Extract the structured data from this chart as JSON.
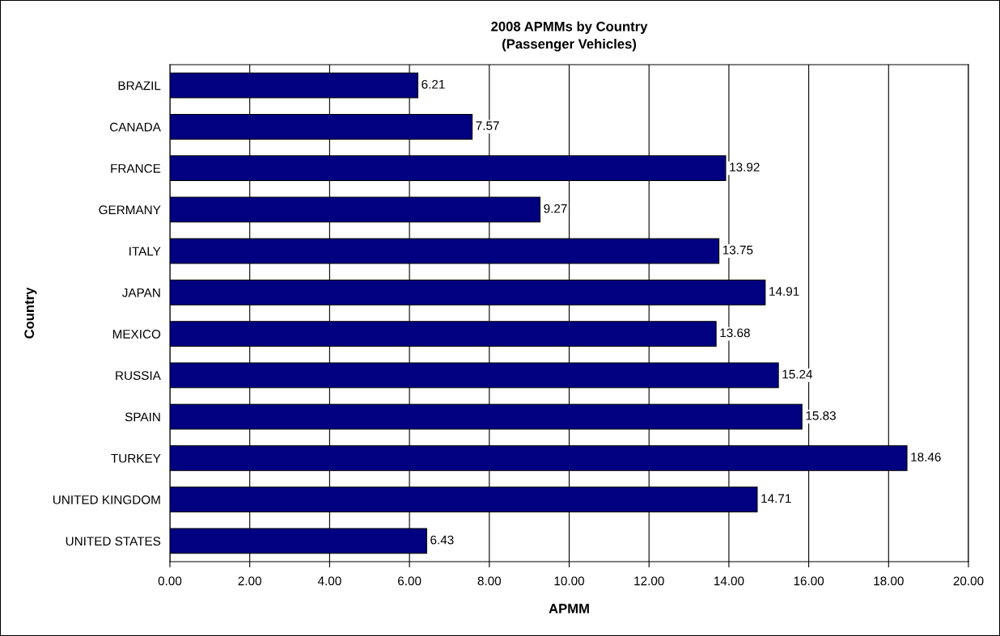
{
  "chart_data": {
    "type": "bar",
    "orientation": "horizontal",
    "title": "2008 APMMs by Country\n(Passenger Vehicles)",
    "xlabel": "APMM",
    "ylabel": "Country",
    "categories": [
      "BRAZIL",
      "CANADA",
      "FRANCE",
      "GERMANY",
      "ITALY",
      "JAPAN",
      "MEXICO",
      "RUSSIA",
      "SPAIN",
      "TURKEY",
      "UNITED KINGDOM",
      "UNITED STATES"
    ],
    "values": [
      6.21,
      7.57,
      13.92,
      9.27,
      13.75,
      14.91,
      13.68,
      15.24,
      15.83,
      18.46,
      14.71,
      6.43
    ],
    "color": "#000080",
    "data_labels": true,
    "grid": "x",
    "legend": false,
    "xlim": [
      0,
      20
    ],
    "xticks": [
      {
        "value": 0,
        "label": "0.00"
      },
      {
        "value": 2,
        "label": "2.00"
      },
      {
        "value": 4,
        "label": "4.00"
      },
      {
        "value": 6,
        "label": "6.00"
      },
      {
        "value": 8,
        "label": "8.00"
      },
      {
        "value": 10,
        "label": "10.00"
      },
      {
        "value": 12,
        "label": "12.00"
      },
      {
        "value": 14,
        "label": "14.00"
      },
      {
        "value": 16,
        "label": "16.00"
      },
      {
        "value": 18,
        "label": "18.00"
      },
      {
        "value": 20,
        "label": "20.00"
      }
    ]
  }
}
